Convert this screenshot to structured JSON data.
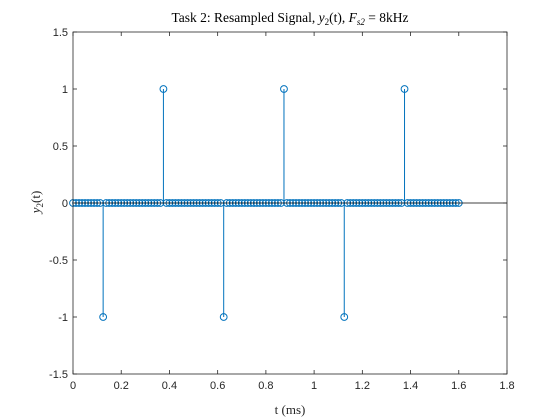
{
  "chart_data": {
    "type": "stem",
    "title": {
      "prefix": "Task 2:  Resampled Signal, ",
      "fn_var": "y",
      "fn_sub": "2",
      "fn_arg": "(t)",
      "sep": ", ",
      "fs_var": "F",
      "fs_sub": "s2",
      "fs_val": " = 8kHz"
    },
    "xlabel": "t (ms)",
    "ylabel": {
      "var": "y",
      "sub": "2",
      "arg": "(t)"
    },
    "xlim": [
      0,
      1.8
    ],
    "ylim": [
      -1.5,
      1.5
    ],
    "xticks": [
      0,
      0.2,
      0.4,
      0.6,
      0.8,
      1,
      1.2,
      1.4,
      1.6,
      1.8
    ],
    "xtick_labels": [
      "0",
      "0.2",
      "0.4",
      "0.6",
      "0.8",
      "1",
      "1.2",
      "1.4",
      "1.6",
      "1.8"
    ],
    "yticks": [
      -1.5,
      -1,
      -0.5,
      0,
      0.5,
      1,
      1.5
    ],
    "ytick_labels": [
      "-1.5",
      "-1",
      "-0.5",
      "0",
      "0.5",
      "1",
      "1.5"
    ],
    "grid": false,
    "series": [
      {
        "color": "#0072BD",
        "x_start": 0,
        "x_step": 0.0125,
        "count": 129,
        "nonzero": [
          {
            "x": 0.125,
            "y": -1
          },
          {
            "x": 0.375,
            "y": 1
          },
          {
            "x": 0.625,
            "y": -1
          },
          {
            "x": 0.875,
            "y": 1
          },
          {
            "x": 1.125,
            "y": -1
          },
          {
            "x": 1.375,
            "y": 1
          }
        ]
      }
    ]
  }
}
